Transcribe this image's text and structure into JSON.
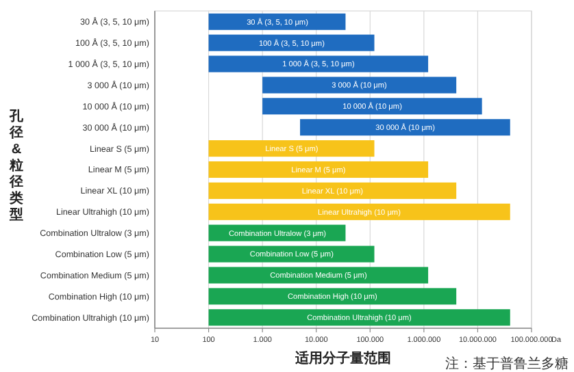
{
  "chart_data": {
    "type": "bar",
    "orientation": "horizontal",
    "xlabel": "适用分子量范围",
    "ylabel": "孔径 & 粒径类型",
    "categories": [
      "30 Å (3, 5, 10 μm)",
      "100 Å (3, 5, 10 μm)",
      "1 000 Å (3, 5, 10 μm)",
      "3 000 Å (10 μm)",
      "10 000 Å (10 μm)",
      "30 000 Å (10 μm)",
      "Linear S (5  μm)",
      "Linear M (5  μm)",
      "Linear XL (10 μm)",
      "Linear Ultrahigh (10 μm)",
      "Combination Ultralow (3 μm)",
      "Combination Low (5 μm)",
      "Combination Medium (5 μm)",
      "Combination High (10 μm)",
      "Combination Ultrahigh (10 μm)"
    ],
    "base": [
      100,
      100,
      100,
      1000,
      1000,
      5000,
      100,
      100,
      100,
      100,
      100,
      100,
      100,
      100,
      100
    ],
    "values": [
      34900,
      119900,
      1199900,
      3999000,
      11999000,
      39995000,
      119900,
      1199900,
      3999900,
      39999900,
      34900,
      119900,
      1199900,
      3999900,
      39999900
    ],
    "colors": [
      "#1f6cc0",
      "#1f6cc0",
      "#1f6cc0",
      "#1f6cc0",
      "#1f6cc0",
      "#1f6cc0",
      "#f7c31a",
      "#f7c31a",
      "#f7c31a",
      "#f7c31a",
      "#1aa653",
      "#1aa653",
      "#1aa653",
      "#1aa653",
      "#1aa653"
    ],
    "log": "x",
    "xlim": [
      10,
      100000000
    ],
    "xticks": [
      10,
      100,
      {
        "value": 1000,
        "label": "1.000"
      },
      {
        "value": 10000,
        "label": "10.000"
      },
      {
        "value": 100000,
        "label": "100.000"
      },
      {
        "value": 1000000,
        "label": "1.000.000"
      },
      {
        "value": 10000000,
        "label": "10.000.000"
      },
      {
        "value": 100000000,
        "label": "100.000.000"
      }
    ],
    "grid": "x",
    "annotations": [
      "Da",
      "注：基于普鲁兰多糖",
      {
        "text": "30 Å (3, 5, 10 μm)",
        "x": 1900,
        "y": "30 Å (3, 5, 10 μm)"
      },
      {
        "text": "100 Å (3, 5, 10 μm)",
        "x": 3500,
        "y": "100 Å (3, 5, 10 μm)"
      },
      {
        "text": "1 000 Å (3, 5, 10 μm)",
        "x": 11000,
        "y": "1 000 Å (3, 5, 10 μm)"
      },
      {
        "text": "3 000 Å (10 μm)",
        "x": 63000,
        "y": "3 000 Å (10 μm)"
      },
      {
        "text": "10 000 Å (10 μm)",
        "x": 110000,
        "y": "10 000 Å (10 μm)"
      },
      {
        "text": "30 000 Å (10 μm)",
        "x": 450000,
        "y": "30 000 Å (10 μm)"
      },
      {
        "text": "Linear S (5  μm)",
        "x": 3500,
        "y": "Linear S (5  μm)"
      },
      {
        "text": "Linear M (5  μm)",
        "x": 11000,
        "y": "Linear M (5  μm)"
      },
      {
        "text": "Linear XL (10 μm)",
        "x": 20000,
        "y": "Linear XL (10 μm)"
      },
      {
        "text": "Linear Ultrahigh (10 μm)",
        "x": 63000,
        "y": "Linear Ultrahigh (10 μm)"
      },
      {
        "text": "Combination Ultralow (3 μm)",
        "x": 1900,
        "y": "Combination Ultralow (3 μm)"
      },
      {
        "text": "Combination Low (5 μm)",
        "x": 3500,
        "y": "Combination Low (5 μm)"
      },
      {
        "text": "Combination Medium (5 μm)",
        "x": 11000,
        "y": "Combination Medium (5 μm)"
      },
      {
        "text": "Combination High (10 μm)",
        "x": 20000,
        "y": "Combination High (10 μm)"
      },
      {
        "text": "Combination Ultrahigh (10 μm)",
        "x": 63000,
        "y": "Combination Ultrahigh (10 μm)"
      }
    ]
  }
}
